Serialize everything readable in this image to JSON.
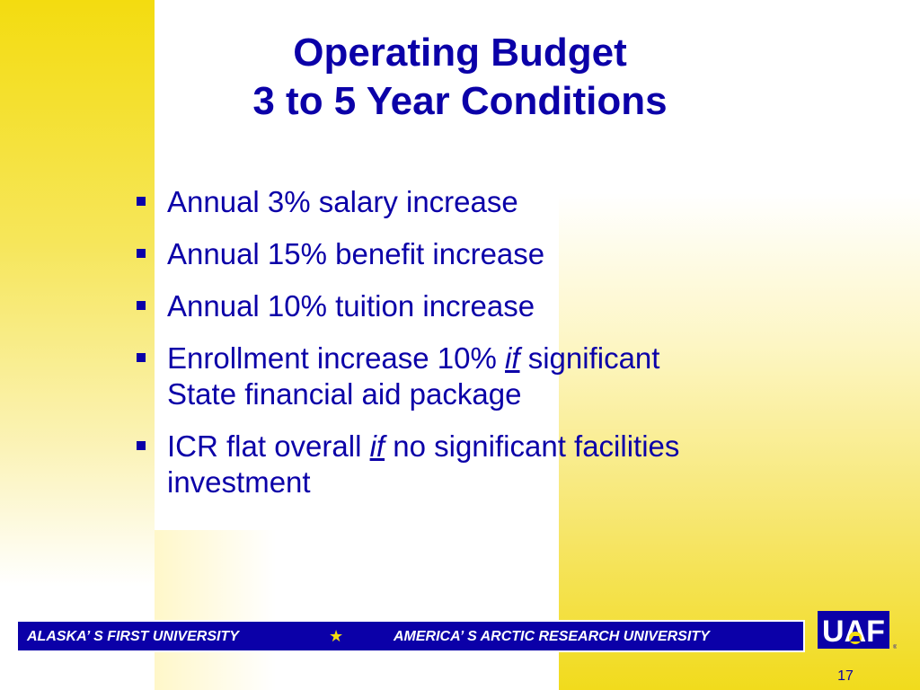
{
  "slide": {
    "title_line1": "Operating Budget",
    "title_line2": "3 to 5 Year Conditions",
    "bullets": [
      {
        "text": "Annual 3% salary increase"
      },
      {
        "text": "Annual 15% benefit increase"
      },
      {
        "text": "Annual 10% tuition increase"
      },
      {
        "pre": "Enrollment increase 10% ",
        "emph": "if",
        "post": " significant",
        "line2": "State financial aid package"
      },
      {
        "pre": "ICR flat overall ",
        "emph": "if",
        "post": " no significant facilities",
        "line2": "investment"
      }
    ]
  },
  "footer": {
    "left": "ALASKA’ S FIRST UNIVERSITY",
    "star": "★",
    "right": "AMERICA’ S ARCTIC RESEARCH UNIVERSITY",
    "logo_text": "UAF",
    "page_number": "17"
  },
  "colors": {
    "text_blue": "#0b00a8",
    "accent_yellow": "#f3dc10"
  }
}
